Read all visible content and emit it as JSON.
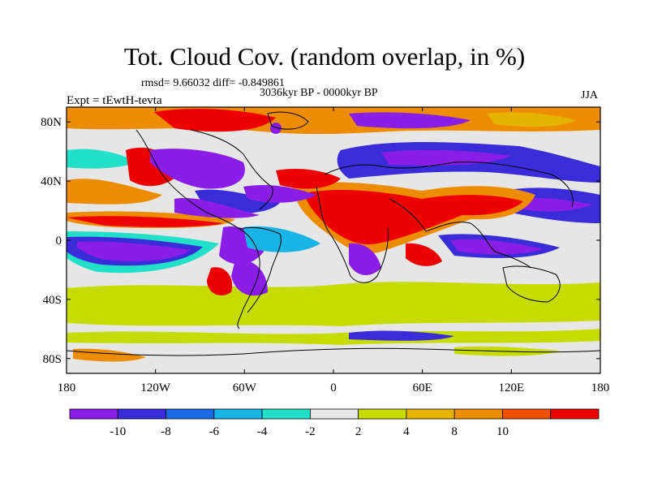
{
  "title": "Tot. Cloud Cov. (random overlap, in %)",
  "stats_line": "rmsd= 9.66032 diff= -0.849861",
  "period_line": "3036kyr BP - 0000kyr BP",
  "experiment_label": "Expt = tEwtH-tevta",
  "season_label": "JJA",
  "lat_ticks": [
    {
      "label": "80N",
      "lat": 80
    },
    {
      "label": "40N",
      "lat": 40
    },
    {
      "label": "0",
      "lat": 0
    },
    {
      "label": "40S",
      "lat": -40
    },
    {
      "label": "80S",
      "lat": -80
    }
  ],
  "lon_ticks": [
    {
      "label": "180",
      "lon": -180
    },
    {
      "label": "120W",
      "lon": -120
    },
    {
      "label": "60W",
      "lon": -60
    },
    {
      "label": "0",
      "lon": 0
    },
    {
      "label": "60E",
      "lon": 60
    },
    {
      "label": "120E",
      "lon": 120
    },
    {
      "label": "180",
      "lon": 180
    }
  ],
  "colorbar": {
    "colors": [
      "#8a1ee6",
      "#3a2cd8",
      "#1a6ae6",
      "#18b4e6",
      "#22e0c8",
      "#e6e6e6",
      "#c6dc00",
      "#e6b400",
      "#ee8c00",
      "#ee5000",
      "#ee0000"
    ],
    "labels": [
      "-10",
      "-8",
      "-6",
      "-4",
      "-2",
      "2",
      "4",
      "8",
      "10"
    ]
  },
  "legend_values": {
    "purple": "#8a1ee6",
    "blue": "#3a2cd8",
    "cyan": "#18b4e6",
    "teal": "#22e0c8",
    "gray": "#e6e6e6",
    "yellow": "#c6dc00",
    "orange": "#e6b400",
    "red": "#ee0000"
  }
}
